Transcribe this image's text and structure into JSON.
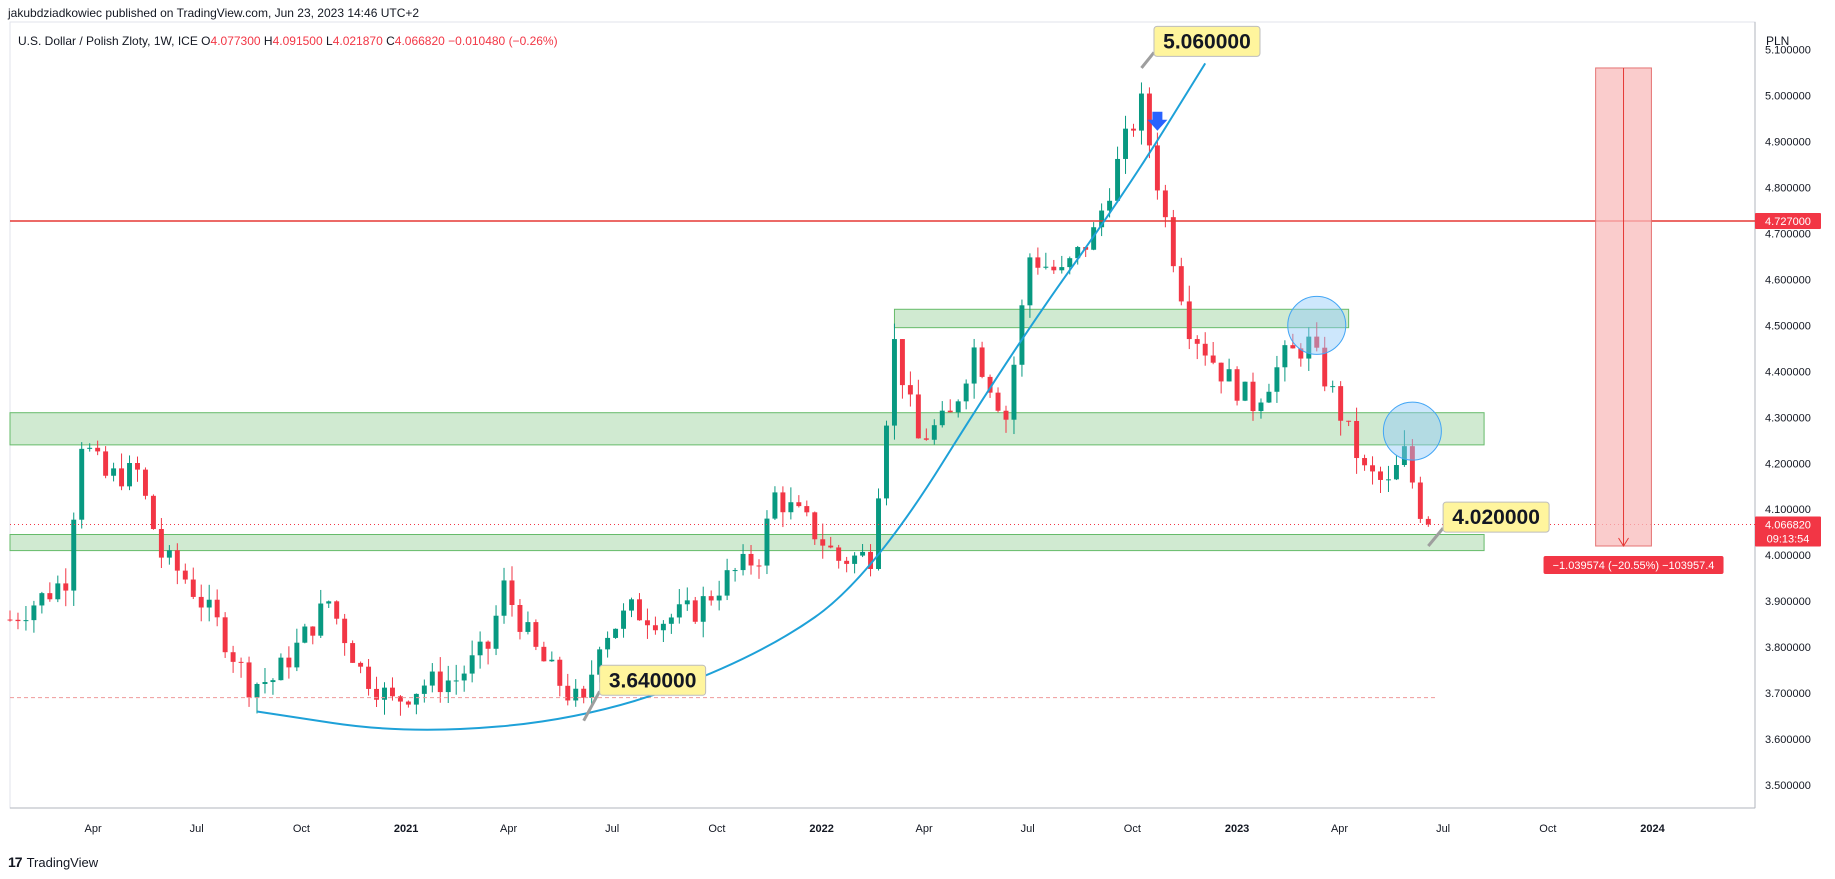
{
  "header": {
    "publisher": "jakubdziadkowiec published on TradingView.com, Jun 23, 2023 14:46 UTC+2",
    "symbol": "U.S. Dollar / Polish Zloty, 1W, ICE",
    "o_label": "O",
    "o_value": "4.077300",
    "h_label": "H",
    "h_value": "4.091500",
    "l_label": "L",
    "l_value": "4.021870",
    "c_label": "C",
    "c_value": "4.066820",
    "change": "−0.010480 (−0.26%)",
    "currency": "PLN"
  },
  "footer": {
    "brand": "TradingView"
  },
  "colors": {
    "up": "#089981",
    "down": "#f23645",
    "zone_fill": "#c8e6c9",
    "zone_stroke": "#66bb6a",
    "curve": "#1ea1d8",
    "resistance": "#e53935",
    "circle": "#90caf9",
    "arrow": "#2962ff",
    "measure": "#f8bbbb",
    "label_bg": "#fff59d"
  },
  "chart_data": {
    "type": "candlestick",
    "y_axis": {
      "ylim": [
        3.45,
        5.16
      ],
      "ticks": [
        "3.500000",
        "3.600000",
        "3.700000",
        "3.800000",
        "3.900000",
        "4.000000",
        "4.100000",
        "4.200000",
        "4.300000",
        "4.400000",
        "4.500000",
        "4.600000",
        "4.700000",
        "4.800000",
        "4.900000",
        "5.000000",
        "5.100000"
      ]
    },
    "x_axis": {
      "xlim": [
        "2020-01-19",
        "2024-03-31"
      ],
      "ticks": [
        {
          "label": "Apr",
          "date": "2020-04-01"
        },
        {
          "label": "Jul",
          "date": "2020-07-01"
        },
        {
          "label": "Oct",
          "date": "2020-10-01"
        },
        {
          "label": "2021",
          "date": "2021-01-01",
          "bold": true
        },
        {
          "label": "Apr",
          "date": "2021-04-01"
        },
        {
          "label": "Jul",
          "date": "2021-07-01"
        },
        {
          "label": "Oct",
          "date": "2021-10-01"
        },
        {
          "label": "2022",
          "date": "2022-01-01",
          "bold": true
        },
        {
          "label": "Apr",
          "date": "2022-04-01"
        },
        {
          "label": "Jul",
          "date": "2022-07-01"
        },
        {
          "label": "Oct",
          "date": "2022-10-01"
        },
        {
          "label": "2023",
          "date": "2023-01-01",
          "bold": true
        },
        {
          "label": "Apr",
          "date": "2023-04-01"
        },
        {
          "label": "Jul",
          "date": "2023-07-01"
        },
        {
          "label": "Oct",
          "date": "2023-10-01"
        },
        {
          "label": "2024",
          "date": "2024-01-01",
          "bold": true
        }
      ]
    },
    "weekly_close_path": [
      [
        "2020-01-19",
        3.86
      ],
      [
        "2020-02-23",
        3.92
      ],
      [
        "2020-03-08",
        3.95
      ],
      [
        "2020-03-22",
        4.25
      ],
      [
        "2020-04-12",
        4.17
      ],
      [
        "2020-05-10",
        4.18
      ],
      [
        "2020-05-31",
        4.0
      ],
      [
        "2020-06-21",
        3.95
      ],
      [
        "2020-07-19",
        3.85
      ],
      [
        "2020-08-16",
        3.72
      ],
      [
        "2020-09-06",
        3.73
      ],
      [
        "2020-09-27",
        3.8
      ],
      [
        "2020-10-25",
        3.9
      ],
      [
        "2020-11-22",
        3.75
      ],
      [
        "2020-12-20",
        3.68
      ],
      [
        "2021-01-17",
        3.72
      ],
      [
        "2021-02-14",
        3.73
      ],
      [
        "2021-03-14",
        3.8
      ],
      [
        "2021-03-28",
        3.93
      ],
      [
        "2021-04-25",
        3.79
      ],
      [
        "2021-05-23",
        3.7
      ],
      [
        "2021-06-06",
        3.67
      ],
      [
        "2021-06-20",
        3.82
      ],
      [
        "2021-07-18",
        3.88
      ],
      [
        "2021-08-15",
        3.86
      ],
      [
        "2021-09-12",
        3.88
      ],
      [
        "2021-10-10",
        3.95
      ],
      [
        "2021-11-07",
        4.0
      ],
      [
        "2021-11-21",
        4.13
      ],
      [
        "2021-12-19",
        4.07
      ],
      [
        "2022-01-16",
        3.99
      ],
      [
        "2022-02-13",
        4.0
      ],
      [
        "2022-03-06",
        4.46
      ],
      [
        "2022-03-27",
        4.25
      ],
      [
        "2022-04-24",
        4.3
      ],
      [
        "2022-05-15",
        4.45
      ],
      [
        "2022-06-12",
        4.3
      ],
      [
        "2022-07-03",
        4.65
      ],
      [
        "2022-07-31",
        4.61
      ],
      [
        "2022-08-28",
        4.7
      ],
      [
        "2022-09-25",
        4.9
      ],
      [
        "2022-10-09",
        4.98
      ],
      [
        "2022-10-30",
        4.73
      ],
      [
        "2022-11-20",
        4.5
      ],
      [
        "2022-12-18",
        4.4
      ],
      [
        "2023-01-15",
        4.33
      ],
      [
        "2023-02-12",
        4.43
      ],
      [
        "2023-03-05",
        4.46
      ],
      [
        "2023-03-26",
        4.35
      ],
      [
        "2023-04-23",
        4.18
      ],
      [
        "2023-05-14",
        4.15
      ],
      [
        "2023-05-28",
        4.22
      ],
      [
        "2023-06-11",
        4.1
      ],
      [
        "2023-06-18",
        4.06682
      ]
    ],
    "zones": [
      {
        "from": "2022-03-06",
        "to": "2023-04-09",
        "low": 4.495,
        "high": 4.535
      },
      {
        "from": "2020-01-19",
        "to": "2023-08-06",
        "low": 4.24,
        "high": 4.31
      },
      {
        "from": "2020-01-19",
        "to": "2023-08-06",
        "low": 4.01,
        "high": 4.045
      }
    ],
    "horizontal_lines": [
      {
        "value": 4.727,
        "label": "4.727000",
        "style": "solid"
      },
      {
        "value": 3.69,
        "style": "dashed"
      },
      {
        "value": 4.06682,
        "style": "dotted"
      }
    ],
    "curve_points": [
      [
        "2020-08-23",
        3.66
      ],
      [
        "2021-01-03",
        3.61
      ],
      [
        "2021-06-13",
        3.645
      ],
      [
        "2021-11-07",
        3.78
      ],
      [
        "2022-02-13",
        3.95
      ],
      [
        "2022-06-19",
        4.45
      ],
      [
        "2022-09-25",
        4.79
      ],
      [
        "2022-12-04",
        5.07
      ]
    ],
    "annotations": [
      {
        "text": "5.060000",
        "date": "2022-10-09",
        "value": 5.06,
        "box_date": "2022-10-20",
        "box_value": 5.12
      },
      {
        "text": "3.640000",
        "date": "2021-06-06",
        "value": 3.64,
        "box_date": "2021-06-20",
        "box_value": 3.73
      },
      {
        "text": "4.020000",
        "date": "2023-06-18",
        "value": 4.02,
        "box_date": "2023-07-01",
        "box_value": 4.085
      }
    ],
    "circles": [
      {
        "date": "2023-03-12",
        "value": 4.5
      },
      {
        "date": "2023-06-04",
        "value": 4.27
      }
    ],
    "arrow_marker": {
      "date": "2022-10-23",
      "value": 4.93
    },
    "measure": {
      "from": "2023-11-12",
      "to": "2023-12-31",
      "top": 5.06,
      "bottom": 4.02,
      "label": "−1.039574 (−20.55%) −103957.4"
    },
    "price_labels": [
      {
        "value": 4.727,
        "text": "4.727000"
      },
      {
        "value": 4.06682,
        "text": "4.066820",
        "sub": "09:13:54"
      }
    ]
  }
}
